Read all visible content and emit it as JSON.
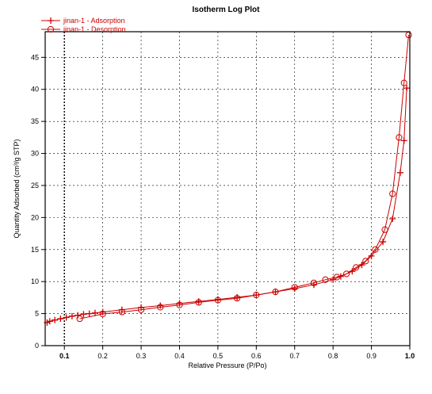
{
  "chart_data": {
    "type": "line",
    "title": "Isotherm Log Plot",
    "xlabel": "Relative Pressure (P/Po)",
    "ylabel": "Quantity Adsorbed (cm³/g STP)",
    "xlim": [
      0.05,
      1.0
    ],
    "ylim": [
      0,
      49
    ],
    "xticks": [
      {
        "value": 0.1,
        "label": "0.1",
        "bold": true
      },
      {
        "value": 0.2,
        "label": "0.2"
      },
      {
        "value": 0.3,
        "label": "0.3"
      },
      {
        "value": 0.4,
        "label": "0.4"
      },
      {
        "value": 0.5,
        "label": "0.5"
      },
      {
        "value": 0.6,
        "label": "0.6"
      },
      {
        "value": 0.7,
        "label": "0.7"
      },
      {
        "value": 0.8,
        "label": "0.8"
      },
      {
        "value": 0.9,
        "label": "0.9"
      },
      {
        "value": 1.0,
        "label": "1.0",
        "bold": true
      }
    ],
    "yticks": [
      {
        "value": 0,
        "label": "0"
      },
      {
        "value": 5,
        "label": "5"
      },
      {
        "value": 10,
        "label": "10"
      },
      {
        "value": 15,
        "label": "15"
      },
      {
        "value": 20,
        "label": "20"
      },
      {
        "value": 25,
        "label": "25"
      },
      {
        "value": 30,
        "label": "30"
      },
      {
        "value": 35,
        "label": "35"
      },
      {
        "value": 40,
        "label": "40"
      },
      {
        "value": 45,
        "label": "45"
      }
    ],
    "grid": true,
    "legend_position": "top-left",
    "color": "#cc0000",
    "series": [
      {
        "name": "jinan-1 - Adsorption",
        "marker": "plus",
        "x": [
          0.055,
          0.062,
          0.075,
          0.09,
          0.105,
          0.12,
          0.135,
          0.15,
          0.165,
          0.18,
          0.2,
          0.25,
          0.3,
          0.35,
          0.4,
          0.45,
          0.5,
          0.55,
          0.6,
          0.65,
          0.7,
          0.75,
          0.8,
          0.82,
          0.85,
          0.875,
          0.9,
          0.93,
          0.955,
          0.975,
          0.985,
          0.992
        ],
        "y": [
          3.6,
          3.8,
          4.0,
          4.2,
          4.4,
          4.6,
          4.75,
          4.9,
          5.0,
          5.1,
          5.25,
          5.6,
          5.95,
          6.25,
          6.6,
          6.9,
          7.2,
          7.55,
          7.9,
          8.4,
          8.9,
          9.5,
          10.3,
          10.8,
          11.6,
          12.6,
          14.0,
          16.2,
          19.8,
          27.0,
          32.0,
          40.2
        ]
      },
      {
        "name": "jinan-1 - Desorption",
        "marker": "circle",
        "x": [
          0.997,
          0.985,
          0.972,
          0.955,
          0.935,
          0.91,
          0.885,
          0.86,
          0.835,
          0.81,
          0.78,
          0.75,
          0.7,
          0.65,
          0.6,
          0.55,
          0.5,
          0.45,
          0.4,
          0.35,
          0.3,
          0.25,
          0.2,
          0.14
        ],
        "y": [
          48.5,
          41.0,
          32.5,
          23.7,
          18.1,
          15.0,
          13.2,
          12.2,
          11.2,
          10.7,
          10.3,
          9.8,
          9.1,
          8.4,
          7.9,
          7.4,
          7.1,
          6.75,
          6.35,
          6.0,
          5.6,
          5.25,
          4.95,
          4.2
        ]
      }
    ]
  }
}
